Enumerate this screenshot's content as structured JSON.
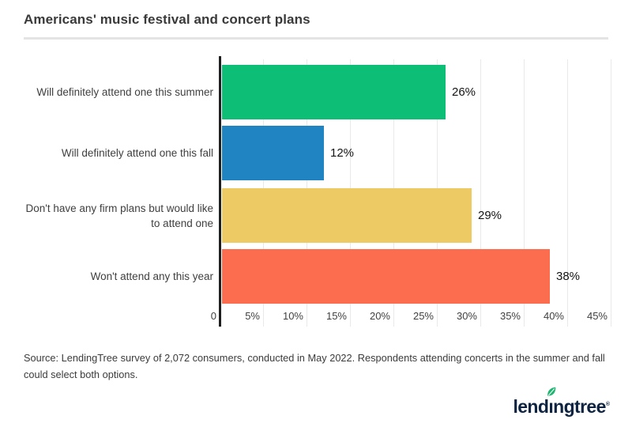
{
  "title": "Americans' music festival and concert plans",
  "source_note": "Source: LendingTree survey of 2,072 consumers, conducted in May 2022. Respondents attending concerts in the summer and fall could select both options.",
  "logo": {
    "name": "LendingTree",
    "wordmark_pre": "lend",
    "wordmark_dotless_i": "ı",
    "wordmark_post": "ngtree",
    "registered": "®",
    "navy": "#0e2340",
    "leaf_green": "#1fb571"
  },
  "chart_data": {
    "type": "bar",
    "orientation": "horizontal",
    "title": "Americans' music festival and concert plans",
    "categories": [
      "Will definitely attend one this summer",
      "Will definitely attend one this fall",
      "Don't have any firm plans but would like to attend one",
      "Won't attend any this year"
    ],
    "values": [
      26,
      12,
      29,
      38
    ],
    "value_labels": [
      "26%",
      "12%",
      "29%",
      "38%"
    ],
    "bar_colors": [
      "#0dbe76",
      "#2184c2",
      "#edca63",
      "#fc6d4f"
    ],
    "x_ticks": [
      "0",
      "5%",
      "10%",
      "15%",
      "20%",
      "25%",
      "30%",
      "35%",
      "40%",
      "45%"
    ],
    "x_axis_range": [
      0,
      45
    ],
    "grid": true,
    "legend": false,
    "xlabel": "",
    "ylabel": ""
  }
}
